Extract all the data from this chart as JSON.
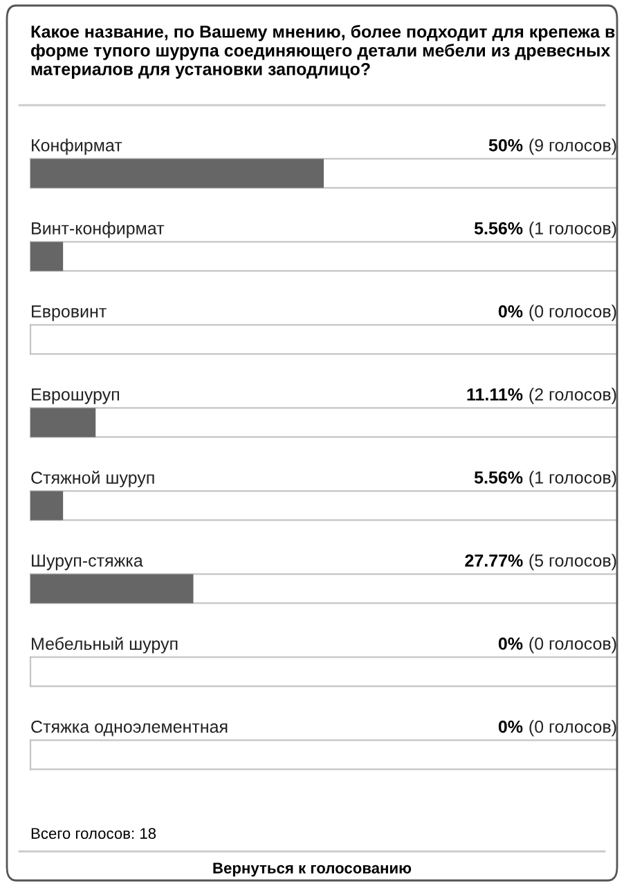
{
  "chart_data": {
    "type": "bar",
    "orientation": "horizontal",
    "title": "Какое название, по Вашему мнению, более подходит для крепежа в форме тупого шурупа соединяющего детали мебели из древесных материалов для установки заподлицо?",
    "categories": [
      "Конфирмат",
      "Винт-конфирмат",
      "Евровинт",
      "Еврошуруп",
      "Стяжной шуруп",
      "Шуруп-стяжка",
      "Мебельный шуруп",
      "Стяжка одноэлементная"
    ],
    "values": [
      50,
      5.56,
      0,
      11.11,
      5.56,
      27.77,
      0,
      0
    ],
    "value_labels": [
      "50%",
      "5.56%",
      "0%",
      "11.11%",
      "5.56%",
      "27.77%",
      "0%",
      "0%"
    ],
    "color": "#666666",
    "xlim": [
      0,
      100
    ],
    "annotations": [
      "(9 голосов)",
      "(1 голосов)",
      "(0 голосов)",
      "(2 голосов)",
      "(1 голосов)",
      "(5 голосов)",
      "(0 голосов)",
      "(0 голосов)",
      "Всего голосов: 18",
      "Вернуться к голосованию"
    ]
  }
}
